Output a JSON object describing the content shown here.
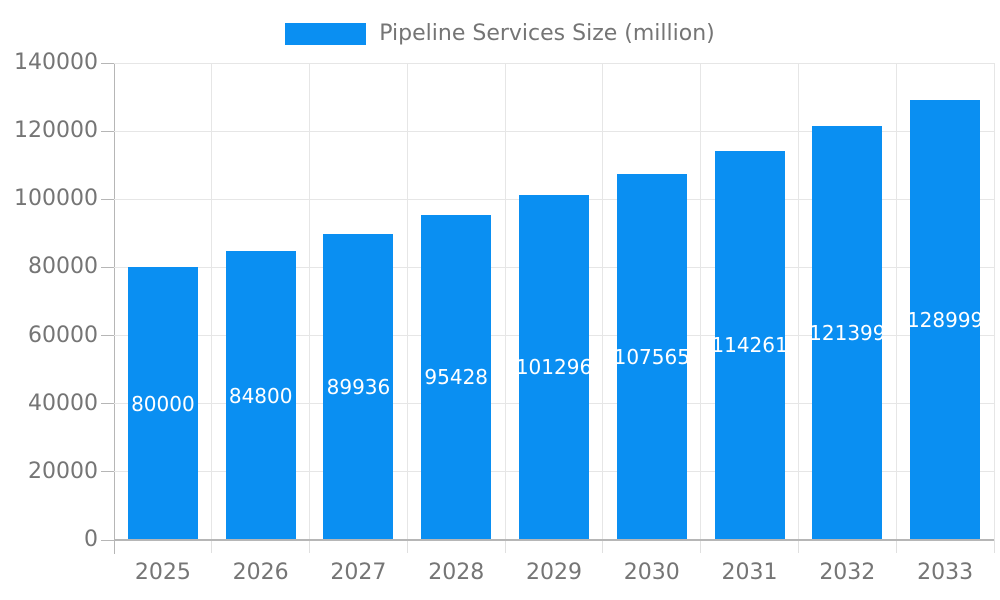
{
  "chart_data": {
    "type": "bar",
    "title": "Pipeline Services Size (million)",
    "legend": {
      "label": "Pipeline Services Size (million)",
      "position": "top"
    },
    "categories": [
      "2025",
      "2026",
      "2027",
      "2028",
      "2029",
      "2030",
      "2031",
      "2032",
      "2033"
    ],
    "series": [
      {
        "name": "Pipeline Services Size (million)",
        "values": [
          80000,
          84800,
          89936,
          95428,
          101296,
          107565,
          114261,
          121399,
          128999
        ],
        "values_display": [
          "80000",
          "84800",
          "89936",
          "95428",
          "101296",
          "107565",
          "114261",
          "121399",
          "128999"
        ]
      }
    ],
    "xlabel": "",
    "ylabel": "",
    "ylim": [
      0,
      140000
    ],
    "ytick_step": 20000,
    "yticks": [
      "0",
      "20000",
      "40000",
      "60000",
      "80000",
      "100000",
      "120000",
      "140000"
    ],
    "grid": true,
    "bar_labels_inside": true,
    "colors": {
      "bar": "#0a8ff2",
      "bar_label_text": "#ffffff",
      "axis_text": "#757575",
      "grid_line": "#e6e6e6",
      "axis_line": "#b6b6b6",
      "background": "#ffffff"
    }
  }
}
